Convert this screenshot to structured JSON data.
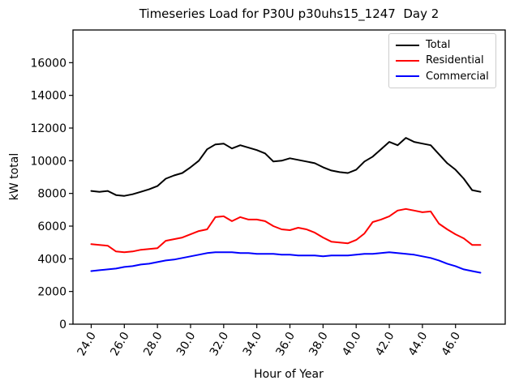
{
  "figure": {
    "title": "Timeseries Load for P30U p30uhs15_1247  Day 2",
    "xlabel": "Hour of Year",
    "ylabel": "kW total"
  },
  "legend": {
    "position": "upper right",
    "items": [
      {
        "label": "Total",
        "color": "#000000"
      },
      {
        "label": "Residential",
        "color": "#ff0000"
      },
      {
        "label": "Commercial",
        "color": "#0000ff"
      }
    ]
  },
  "chart_data": {
    "type": "line",
    "title": "Timeseries Load for P30U p30uhs15_1247  Day 2",
    "xlabel": "Hour of Year",
    "ylabel": "kW total",
    "grid": false,
    "legend_position": "upper right",
    "xlim": [
      22.9,
      49.0
    ],
    "ylim": [
      0,
      18000
    ],
    "x_ticks": {
      "values": [
        24,
        26,
        28,
        30,
        32,
        34,
        36,
        38,
        40,
        42,
        44,
        46
      ],
      "labels": [
        "24.0",
        "26.0",
        "28.0",
        "30.0",
        "32.0",
        "34.0",
        "36.0",
        "38.0",
        "40.0",
        "42.0",
        "44.0",
        "46.0"
      ],
      "rotation_deg": 60
    },
    "y_ticks": {
      "values": [
        0,
        2000,
        4000,
        6000,
        8000,
        10000,
        12000,
        14000,
        16000
      ],
      "labels": [
        "0",
        "2000",
        "4000",
        "6000",
        "8000",
        "10000",
        "12000",
        "14000",
        "16000"
      ]
    },
    "x": [
      24.0,
      24.5,
      25.0,
      25.5,
      26.0,
      26.5,
      27.0,
      27.5,
      28.0,
      28.5,
      29.0,
      29.5,
      30.0,
      30.5,
      31.0,
      31.5,
      32.0,
      32.5,
      33.0,
      33.5,
      34.0,
      34.5,
      35.0,
      35.5,
      36.0,
      36.5,
      37.0,
      37.5,
      38.0,
      38.5,
      39.0,
      39.5,
      40.0,
      40.5,
      41.0,
      41.5,
      42.0,
      42.5,
      43.0,
      43.5,
      44.0,
      44.5,
      45.0,
      45.5,
      46.0,
      46.5,
      47.0,
      47.5
    ],
    "series": [
      {
        "name": "Total",
        "color": "#000000",
        "values": [
          8150,
          8100,
          8150,
          7900,
          7850,
          7950,
          8100,
          8250,
          8450,
          8900,
          9100,
          9250,
          9600,
          10000,
          10700,
          11000,
          11050,
          10750,
          10950,
          10800,
          10650,
          10450,
          9950,
          10000,
          10150,
          10050,
          9950,
          9850,
          9600,
          9400,
          9300,
          9250,
          9450,
          9950,
          10250,
          10700,
          11150,
          10950,
          11400,
          11150,
          11050,
          10950,
          10400,
          9850,
          9450,
          8900,
          8200,
          8100
        ]
      },
      {
        "name": "Residential",
        "color": "#ff0000",
        "values": [
          4900,
          4850,
          4800,
          4450,
          4400,
          4450,
          4550,
          4600,
          4650,
          5100,
          5200,
          5300,
          5500,
          5700,
          5800,
          6550,
          6600,
          6300,
          6550,
          6400,
          6400,
          6300,
          6000,
          5800,
          5750,
          5900,
          5800,
          5600,
          5300,
          5050,
          5000,
          4950,
          5150,
          5550,
          6250,
          6400,
          6600,
          6950,
          7050,
          6950,
          6850,
          6900,
          6150,
          5800,
          5500,
          5250,
          4850,
          4850
        ]
      },
      {
        "name": "Commercial",
        "color": "#0000ff",
        "values": [
          3250,
          3300,
          3350,
          3400,
          3500,
          3550,
          3650,
          3700,
          3800,
          3900,
          3950,
          4050,
          4150,
          4250,
          4350,
          4400,
          4400,
          4400,
          4350,
          4350,
          4300,
          4300,
          4300,
          4250,
          4250,
          4200,
          4200,
          4200,
          4150,
          4200,
          4200,
          4200,
          4250,
          4300,
          4300,
          4350,
          4400,
          4350,
          4300,
          4250,
          4150,
          4050,
          3900,
          3700,
          3550,
          3350,
          3250,
          3150
        ]
      }
    ]
  }
}
